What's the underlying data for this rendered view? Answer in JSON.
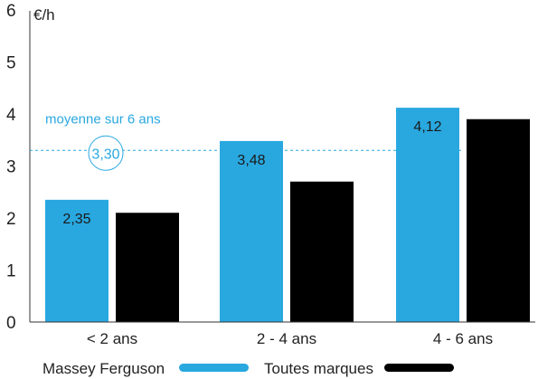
{
  "chart_data": {
    "type": "bar",
    "unit_label": "€/h",
    "categories": [
      "< 2 ans",
      "2 - 4 ans",
      "4 - 6 ans"
    ],
    "series": [
      {
        "name": "Massey Ferguson",
        "values": [
          2.35,
          3.48,
          4.12
        ],
        "labels": [
          "2,35",
          "3,48",
          "4,12"
        ],
        "color": "#29a8e0"
      },
      {
        "name": "Toutes marques",
        "values": [
          2.1,
          2.7,
          3.9
        ],
        "labels": [
          "",
          "",
          ""
        ],
        "color": "#000000"
      }
    ],
    "ylim": [
      0,
      6
    ],
    "yticks": [
      "0",
      "1",
      "2",
      "3",
      "4",
      "5",
      "6"
    ],
    "grid": false,
    "legend_position": "bottom",
    "reference_line": {
      "label": "moyenne sur 6 ans",
      "value": 3.3,
      "value_label": "3,30",
      "color": "#29a8e0"
    }
  }
}
